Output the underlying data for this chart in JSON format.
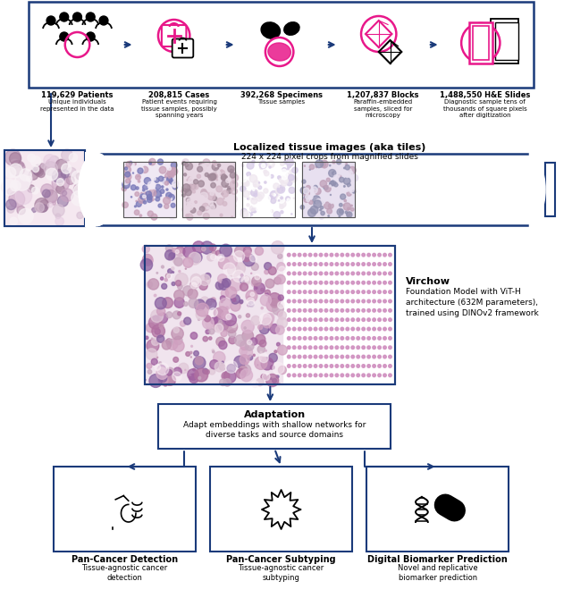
{
  "bg_color": "#ffffff",
  "border_color": "#1a3a7a",
  "pink_color": "#e8188a",
  "arrow_color": "#1a3a7a",
  "box1_label_bold": "119,629 Patients",
  "box1_label_sub": "Unique individuals\nrepresented in the data",
  "box2_label_bold": "208,815 Cases",
  "box2_label_sub": "Patient events requiring\ntissue samples, possibly\nspanning years",
  "box3_label_bold": "392,268 Specimens",
  "box3_label_sub": "Tissue samples",
  "box4_label_bold": "1,207,837 Blocks",
  "box4_label_sub": "Paraffin-embedded\nsamples, sliced for\nmicroscopy",
  "box5_label_bold": "1,488,550 H&E Slides",
  "box5_label_sub": "Diagnostic sample tens of\nthousands of square pixels\nafter digitization",
  "tiles_label_bold": "Localized tissue images (aka tiles)",
  "tiles_label_sub": "224 x 224 pixel crops from magnified slides",
  "virchow_label_bold": "Virchow",
  "virchow_label_sub": "Foundation Model with ViT-H\narchitecture (632M parameters),\ntrained using DINOv2 framework",
  "adaptation_label_bold": "Adaptation",
  "adaptation_label_sub": "Adapt embeddings with shallow networks for\ndiverse tasks and source domains",
  "out1_label_bold": "Pan-Cancer Detection",
  "out1_label_sub": "Tissue-agnostic cancer\ndetection",
  "out2_label_bold": "Pan-Cancer Subtyping",
  "out2_label_sub": "Tissue-agnostic cancer\nsubtyping",
  "out3_label_bold": "Digital Biomarker Prediction",
  "out3_label_sub": "Novel and replicative\nbiomarker prediction"
}
